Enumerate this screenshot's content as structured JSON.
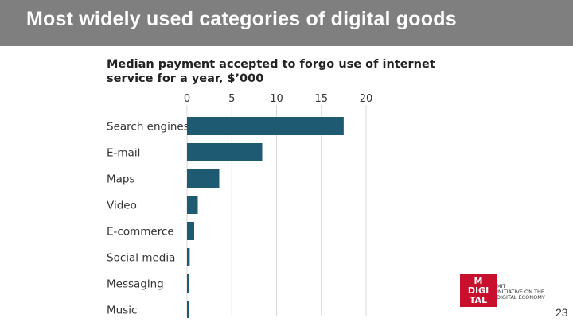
{
  "slide": {
    "title": "Most widely used categories of digital goods",
    "page_number": "23"
  },
  "logo": {
    "mark_lines": [
      "M",
      "DIGI",
      "TAL"
    ],
    "text_lines": [
      "MIT",
      "INITIATIVE ON THE",
      "DIGITAL ECONOMY"
    ]
  },
  "colors": {
    "title_bar": "#7f7f7f",
    "bar": "#1f5a73",
    "logo": "#c8102e"
  },
  "chart_data": {
    "type": "bar",
    "orientation": "horizontal",
    "title_lines": [
      "Median payment accepted to forgo use of internet",
      "service for a year, $’000"
    ],
    "categories": [
      "Search engines",
      "E-mail",
      "Maps",
      "Video",
      "E-commerce",
      "Social media",
      "Messaging",
      "Music"
    ],
    "values": [
      17.5,
      8.4,
      3.6,
      1.2,
      0.8,
      0.3,
      0.15,
      0.15
    ],
    "xlim": [
      0,
      20
    ],
    "xticks": [
      0,
      5,
      10,
      15,
      20
    ],
    "xtick_position": "top",
    "grid": true,
    "legend": "none"
  }
}
